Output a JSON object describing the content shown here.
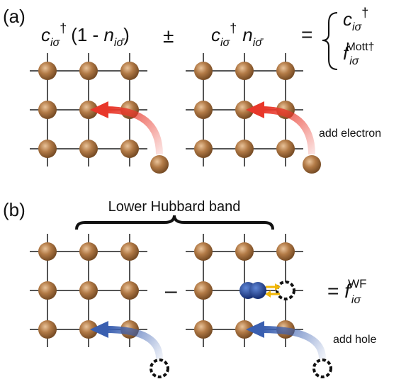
{
  "panel_a": {
    "label": "(a)",
    "expr1": {
      "c": "c",
      "c_sub": "iσ",
      "c_sup": "†",
      "open": "(1 - ",
      "n": "n",
      "n_sub": "iσ̄",
      "close": ")"
    },
    "plus_minus": "±",
    "expr2": {
      "c": "c",
      "c_sub": "iσ",
      "c_sup": "†",
      "n": "n",
      "n_sub": "iσ̄"
    },
    "equals": "=",
    "result1": {
      "c": "c",
      "sub": "iσ",
      "sup": "†"
    },
    "result2": {
      "f": "f",
      "sub": "iσ",
      "sup": "Mott†"
    },
    "annotation": "add electron"
  },
  "panel_b": {
    "label": "(b)",
    "brace_label": "Lower Hubbard band",
    "minus": "–",
    "result": {
      "eq": "= ",
      "f": "f",
      "sub": "iσ",
      "sup": "WF"
    },
    "annotation": "add hole"
  }
}
